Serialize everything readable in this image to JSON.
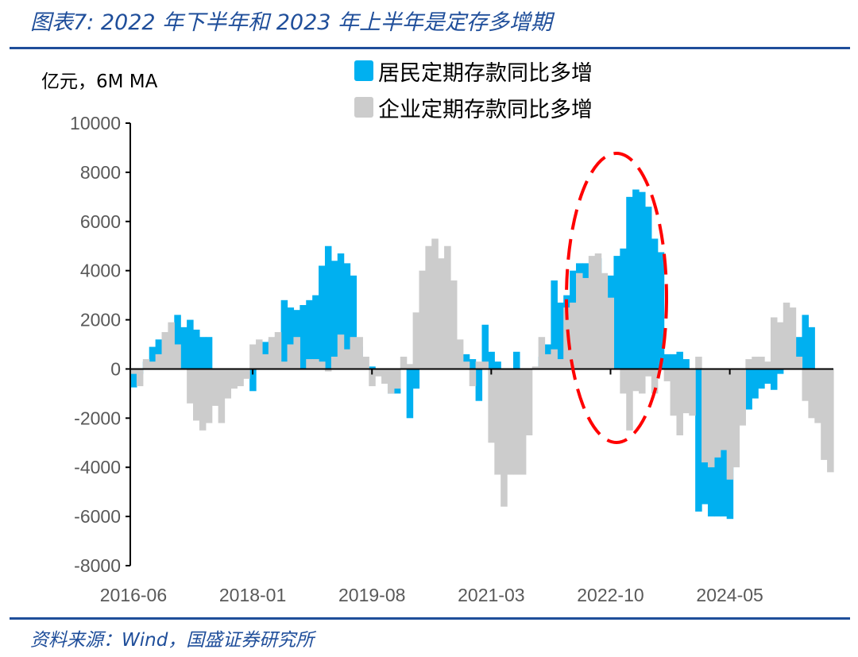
{
  "header": {
    "title": "图表7: 2022 年下半年和 2023 年上半年是定存多增期"
  },
  "footer": {
    "source": "资料来源：Wind，国盛证券研究所"
  },
  "chart_data": {
    "type": "bar",
    "title": "",
    "unit_label": "亿元，6M MA",
    "ylim": [
      -8000,
      10000
    ],
    "y_ticks": [
      10000,
      8000,
      6000,
      4000,
      2000,
      0,
      -2000,
      -4000,
      -6000,
      -8000
    ],
    "x_tick_labels": [
      "2016-06",
      "2018-01",
      "2019-08",
      "2021-03",
      "2022-10",
      "2024-05"
    ],
    "grid": false,
    "legend_position": "top-right",
    "annotation": "red dashed ellipse around 2022-07 to 2023-06",
    "colors": {
      "household": "#00B0F0",
      "corporate": "#CCCCCC",
      "annotation": "#FF0000",
      "title": "#1F4E9A"
    },
    "categories": [
      "2016-06",
      "2016-07",
      "2016-08",
      "2016-09",
      "2016-10",
      "2016-11",
      "2016-12",
      "2017-01",
      "2017-02",
      "2017-03",
      "2017-04",
      "2017-05",
      "2017-06",
      "2017-07",
      "2017-08",
      "2017-09",
      "2017-10",
      "2017-11",
      "2017-12",
      "2018-01",
      "2018-02",
      "2018-03",
      "2018-04",
      "2018-05",
      "2018-06",
      "2018-07",
      "2018-08",
      "2018-09",
      "2018-10",
      "2018-11",
      "2018-12",
      "2019-01",
      "2019-02",
      "2019-03",
      "2019-04",
      "2019-05",
      "2019-06",
      "2019-07",
      "2019-08",
      "2019-09",
      "2019-10",
      "2019-11",
      "2019-12",
      "2020-01",
      "2020-02",
      "2020-03",
      "2020-04",
      "2020-05",
      "2020-06",
      "2020-07",
      "2020-08",
      "2020-09",
      "2020-10",
      "2020-11",
      "2020-12",
      "2021-01",
      "2021-02",
      "2021-03",
      "2021-04",
      "2021-05",
      "2021-06",
      "2021-07",
      "2021-08",
      "2021-09",
      "2021-10",
      "2021-11",
      "2021-12",
      "2022-01",
      "2022-02",
      "2022-03",
      "2022-04",
      "2022-05",
      "2022-06",
      "2022-07",
      "2022-08",
      "2022-09",
      "2022-10",
      "2022-11",
      "2022-12",
      "2023-01",
      "2023-02",
      "2023-03",
      "2023-04",
      "2023-05",
      "2023-06",
      "2023-07",
      "2023-08",
      "2023-09",
      "2023-10",
      "2023-11",
      "2023-12",
      "2024-01",
      "2024-02",
      "2024-03",
      "2024-04",
      "2024-05",
      "2024-06",
      "2024-07",
      "2024-08",
      "2024-09",
      "2024-10",
      "2024-11",
      "2024-12",
      "2025-01",
      "2025-02",
      "2025-03",
      "2025-04",
      "2025-05",
      "2025-06",
      "2025-07",
      "2025-08",
      "2025-09"
    ],
    "series": [
      {
        "name": "居民定期存款同比多增",
        "values": [
          -750,
          -200,
          300,
          900,
          1200,
          1000,
          1200,
          2200,
          1700,
          2000,
          1600,
          1300,
          1300,
          0,
          0,
          0,
          0,
          0,
          -300,
          -900,
          200,
          1100,
          1200,
          1300,
          2800,
          2500,
          2400,
          2600,
          2800,
          3000,
          4200,
          5000,
          4400,
          4700,
          4300,
          3800,
          900,
          0,
          100,
          0,
          -300,
          -1000,
          -1000,
          0,
          -2000,
          -800,
          0,
          0,
          0,
          0,
          0,
          0,
          500,
          600,
          400,
          -1300,
          1800,
          700,
          300,
          0,
          0,
          700,
          0,
          0,
          0,
          500,
          1000,
          3600,
          2700,
          3000,
          4000,
          4300,
          4300,
          4200,
          4500,
          3800,
          3800,
          4600,
          4900,
          7000,
          7300,
          7200,
          6600,
          5300,
          4750,
          600,
          600,
          700,
          400,
          0,
          -5800,
          -5500,
          -6000,
          -6000,
          -6000,
          -6100,
          0,
          0,
          -1650,
          -1200,
          -800,
          -600,
          -850,
          -200,
          0,
          0,
          1300,
          2200,
          1700,
          0,
          0,
          0
        ]
      },
      {
        "name": "企业定期存款同比多增",
        "values": [
          -200,
          -700,
          400,
          300,
          600,
          1500,
          1900,
          1000,
          0,
          -1400,
          -2100,
          -2500,
          -2200,
          -1500,
          -2200,
          -1200,
          -800,
          -700,
          -400,
          1000,
          1200,
          600,
          1300,
          1500,
          300,
          1000,
          1300,
          0,
          400,
          400,
          300,
          -100,
          500,
          1400,
          800,
          1300,
          1300,
          500,
          -700,
          -300,
          -600,
          -1000,
          -800,
          500,
          200,
          2300,
          4000,
          5000,
          5300,
          4500,
          5000,
          3600,
          1200,
          300,
          -700,
          300,
          300,
          -3000,
          -4300,
          -5600,
          -4300,
          -4300,
          -4300,
          -2700,
          100,
          1300,
          600,
          800,
          400,
          2500,
          2700,
          3900,
          3700,
          4600,
          4700,
          3900,
          2900,
          0,
          -1000,
          -2500,
          -900,
          -1000,
          -300,
          -1000,
          0,
          -500,
          -1900,
          -2700,
          -1800,
          -1900,
          500,
          -3800,
          -4000,
          -3600,
          -3300,
          -4500,
          -4000,
          -2300,
          400,
          500,
          500,
          300,
          2100,
          1900,
          2700,
          2500,
          500,
          -1300,
          -2000,
          -2200,
          -3700,
          -4200
        ]
      }
    ]
  }
}
